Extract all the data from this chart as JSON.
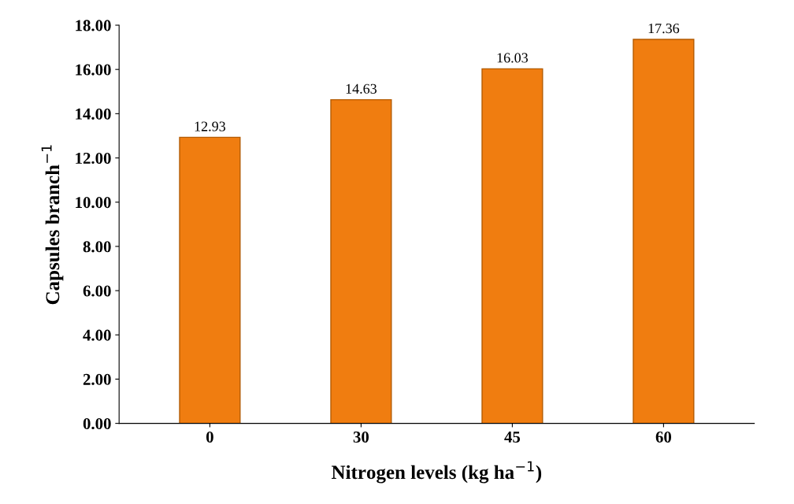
{
  "chart_data": {
    "type": "bar",
    "xlabel": "Nitrogen levels (kg ha$^{−1}$)",
    "ylabel": "Capsules branch$^{−1}$",
    "categories": [
      "0",
      "30",
      "45",
      "60"
    ],
    "values": [
      12.93,
      14.63,
      16.03,
      17.36
    ],
    "color": "#f07d10",
    "ylim": [
      0,
      18
    ],
    "yticks": [
      {
        "value": 0,
        "label": "0.00"
      },
      {
        "value": 2,
        "label": "2.00"
      },
      {
        "value": 4,
        "label": "4.00"
      },
      {
        "value": 6,
        "label": "6.00"
      },
      {
        "value": 8,
        "label": "8.00"
      },
      {
        "value": 10,
        "label": "10.00"
      },
      {
        "value": 12,
        "label": "12.00"
      },
      {
        "value": 14,
        "label": "14.00"
      },
      {
        "value": 16,
        "label": "16.00"
      },
      {
        "value": 18,
        "label": "18.00"
      }
    ],
    "data_labels": true,
    "grid": false,
    "legend": false
  }
}
